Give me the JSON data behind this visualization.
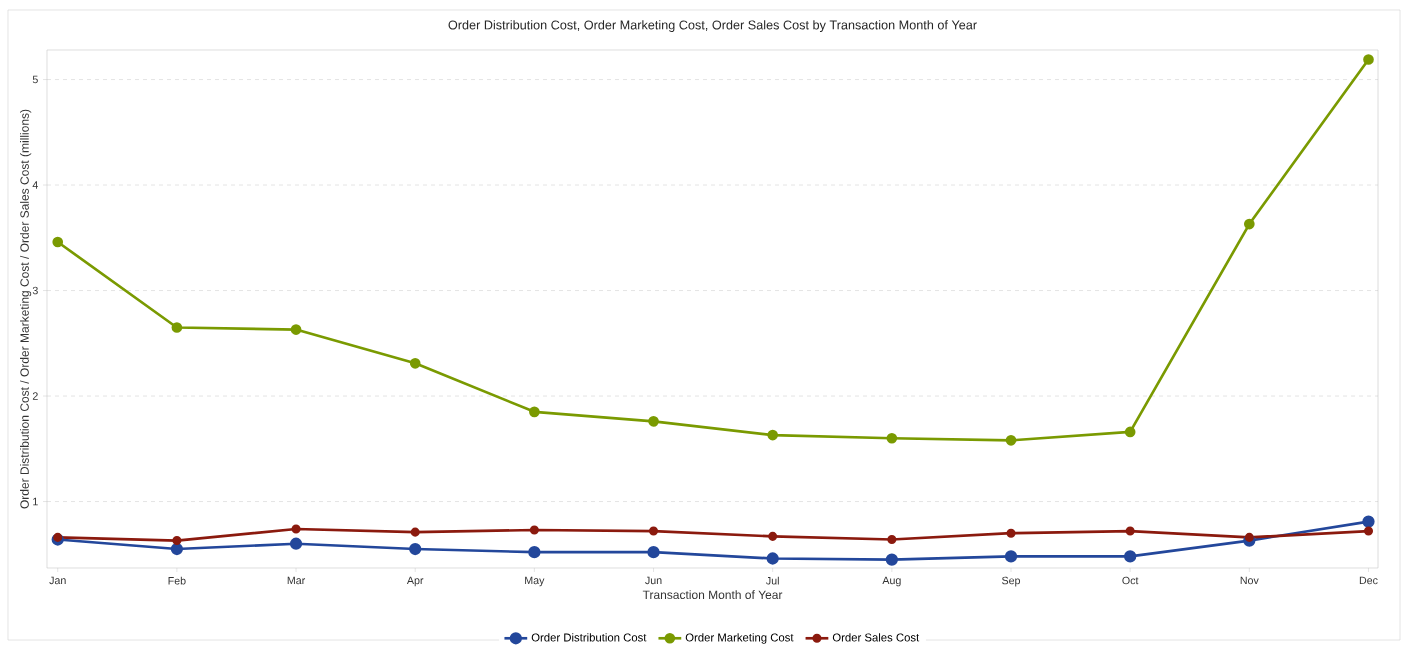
{
  "chart_data": {
    "type": "line",
    "title": "Order Distribution Cost, Order Marketing Cost, Order Sales Cost by Transaction Month of Year",
    "xlabel": "Transaction Month of Year",
    "ylabel": "Order Distribution Cost / Order Marketing Cost / Order Sales Cost (millions)",
    "categories": [
      "Jan",
      "Feb",
      "Mar",
      "Apr",
      "May",
      "Jun",
      "Jul",
      "Aug",
      "Sep",
      "Oct",
      "Nov",
      "Dec"
    ],
    "series": [
      {
        "name": "Order Distribution Cost",
        "color": "#23479b",
        "values": [
          0.64,
          0.55,
          0.6,
          0.55,
          0.52,
          0.52,
          0.46,
          0.45,
          0.48,
          0.48,
          0.63,
          0.81
        ]
      },
      {
        "name": "Order Marketing Cost",
        "color": "#7a9a01",
        "values": [
          3.46,
          2.65,
          2.63,
          2.31,
          1.85,
          1.76,
          1.63,
          1.6,
          1.58,
          1.66,
          3.63,
          5.19
        ]
      },
      {
        "name": "Order Sales Cost",
        "color": "#8b1a0e",
        "values": [
          0.66,
          0.63,
          0.74,
          0.71,
          0.73,
          0.72,
          0.67,
          0.64,
          0.7,
          0.72,
          0.66,
          0.72
        ]
      }
    ],
    "ylim": [
      0.37,
      5.28
    ],
    "yticks": [
      1,
      2,
      3,
      4,
      5
    ],
    "grid": "y",
    "legend": "bottom",
    "marker": "circle",
    "line_style": "solid"
  }
}
